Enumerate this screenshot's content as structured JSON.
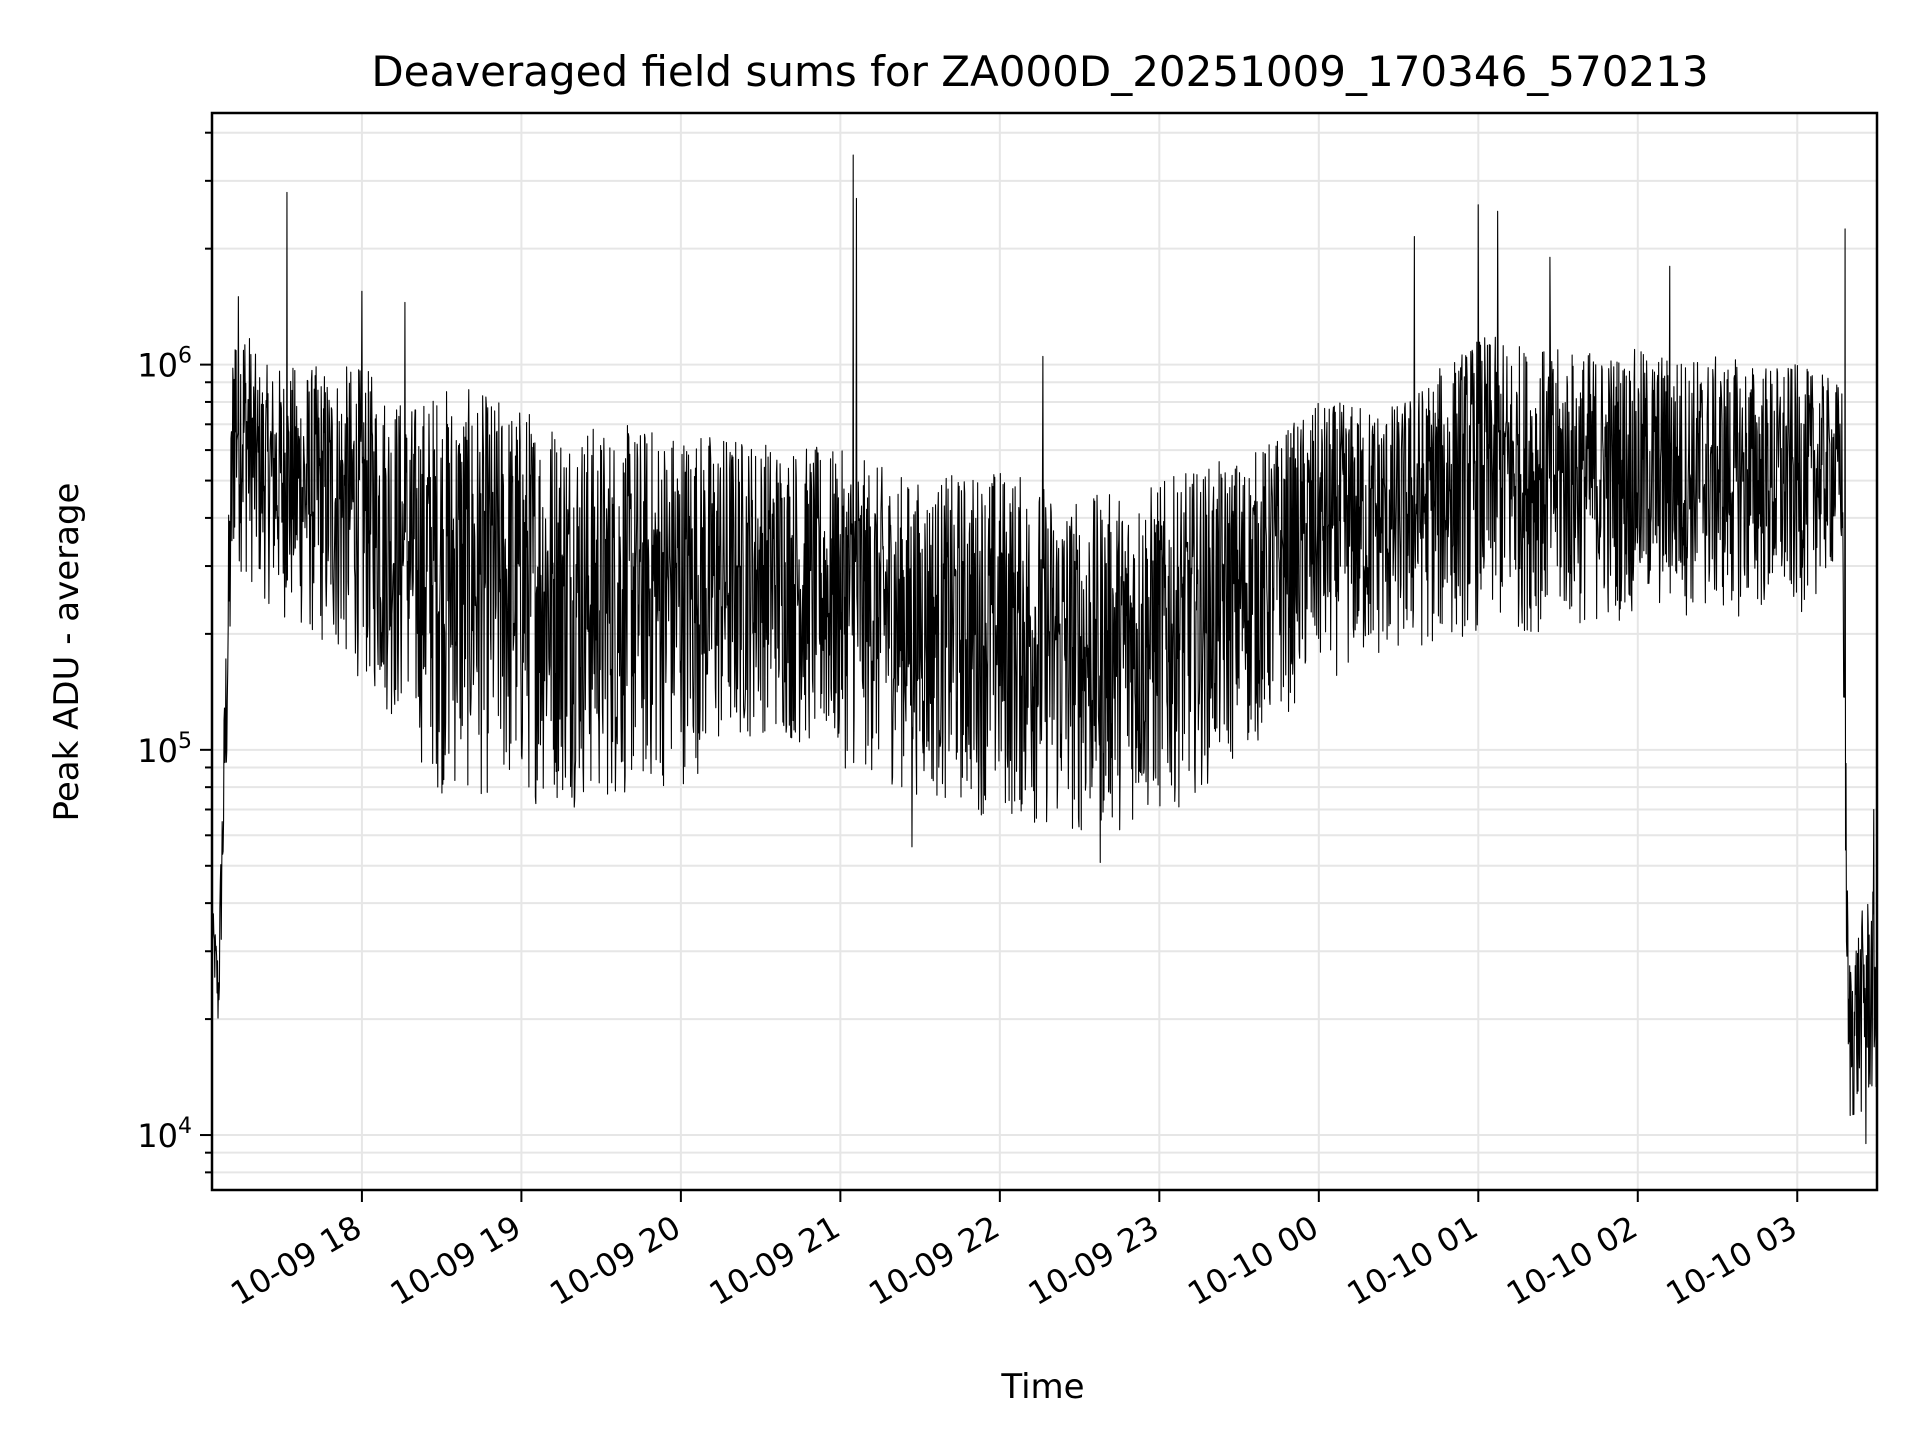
{
  "chart_data": {
    "type": "line",
    "title": "Deaveraged field sums for ZA000D_20251009_170346_570213",
    "xlabel": "Time",
    "ylabel": "Peak ADU - average",
    "yscale": "log",
    "ylim": [
      7200,
      4500000
    ],
    "xlim_hours": [
      17.06,
      27.5
    ],
    "grid": true,
    "x_ticks": [
      {
        "hour": 18,
        "label": "10-09 18"
      },
      {
        "hour": 19,
        "label": "10-09 19"
      },
      {
        "hour": 20,
        "label": "10-09 20"
      },
      {
        "hour": 21,
        "label": "10-09 21"
      },
      {
        "hour": 22,
        "label": "10-09 22"
      },
      {
        "hour": 23,
        "label": "10-09 23"
      },
      {
        "hour": 24,
        "label": "10-10 00"
      },
      {
        "hour": 25,
        "label": "10-10 01"
      },
      {
        "hour": 26,
        "label": "10-10 02"
      },
      {
        "hour": 27,
        "label": "10-10 03"
      }
    ],
    "y_ticks": [
      {
        "value": 10000,
        "base": "10",
        "exp": "4"
      },
      {
        "value": 100000,
        "base": "10",
        "exp": "5"
      },
      {
        "value": 1000000,
        "base": "10",
        "exp": "6"
      }
    ],
    "series": [
      {
        "name": "Peak ADU - average",
        "color": "#000000",
        "envelope": [
          {
            "hour": 17.06,
            "low": 30000,
            "high": 40000
          },
          {
            "hour": 17.1,
            "low": 17000,
            "high": 30000
          },
          {
            "hour": 17.2,
            "low": 300000,
            "high": 1800000
          },
          {
            "hour": 17.35,
            "low": 250000,
            "high": 1000000
          },
          {
            "hour": 17.6,
            "low": 200000,
            "high": 1000000
          },
          {
            "hour": 18.0,
            "low": 150000,
            "high": 1000000
          },
          {
            "hour": 18.3,
            "low": 100000,
            "high": 800000
          },
          {
            "hour": 18.5,
            "low": 75000,
            "high": 900000
          },
          {
            "hour": 19.0,
            "low": 72000,
            "high": 800000
          },
          {
            "hour": 19.5,
            "low": 70000,
            "high": 700000
          },
          {
            "hour": 20.0,
            "low": 80000,
            "high": 700000
          },
          {
            "hour": 20.5,
            "low": 110000,
            "high": 650000
          },
          {
            "hour": 21.0,
            "low": 90000,
            "high": 600000
          },
          {
            "hour": 21.5,
            "low": 75000,
            "high": 500000
          },
          {
            "hour": 22.0,
            "low": 65000,
            "high": 550000
          },
          {
            "hour": 22.5,
            "low": 58000,
            "high": 450000
          },
          {
            "hour": 23.0,
            "low": 65000,
            "high": 500000
          },
          {
            "hour": 23.6,
            "low": 100000,
            "high": 600000
          },
          {
            "hour": 24.0,
            "low": 150000,
            "high": 800000
          },
          {
            "hour": 24.5,
            "low": 170000,
            "high": 800000
          },
          {
            "hour": 25.0,
            "low": 200000,
            "high": 1200000
          },
          {
            "hour": 25.5,
            "low": 200000,
            "high": 1100000
          },
          {
            "hour": 26.0,
            "low": 220000,
            "high": 1100000
          },
          {
            "hour": 26.5,
            "low": 220000,
            "high": 1050000
          },
          {
            "hour": 27.0,
            "low": 220000,
            "high": 1000000
          },
          {
            "hour": 27.28,
            "low": 300000,
            "high": 900000
          },
          {
            "hour": 27.32,
            "low": 10000,
            "high": 30000
          },
          {
            "hour": 27.5,
            "low": 12000,
            "high": 50000
          }
        ],
        "spikes": [
          {
            "hour": 17.53,
            "value": 2800000
          },
          {
            "hour": 18.0,
            "value": 1550000
          },
          {
            "hour": 18.27,
            "value": 1450000
          },
          {
            "hour": 21.08,
            "value": 3500000
          },
          {
            "hour": 21.1,
            "value": 2700000
          },
          {
            "hour": 22.27,
            "value": 1050000
          },
          {
            "hour": 24.6,
            "value": 2150000
          },
          {
            "hour": 25.0,
            "value": 2600000
          },
          {
            "hour": 25.12,
            "value": 2500000
          },
          {
            "hour": 25.45,
            "value": 1900000
          },
          {
            "hour": 26.2,
            "value": 1800000
          },
          {
            "hour": 27.3,
            "value": 2250000
          },
          {
            "hour": 22.63,
            "value": 51000
          },
          {
            "hour": 21.45,
            "value": 56000
          },
          {
            "hour": 27.43,
            "value": 9500
          },
          {
            "hour": 27.48,
            "value": 70000
          }
        ]
      }
    ]
  }
}
